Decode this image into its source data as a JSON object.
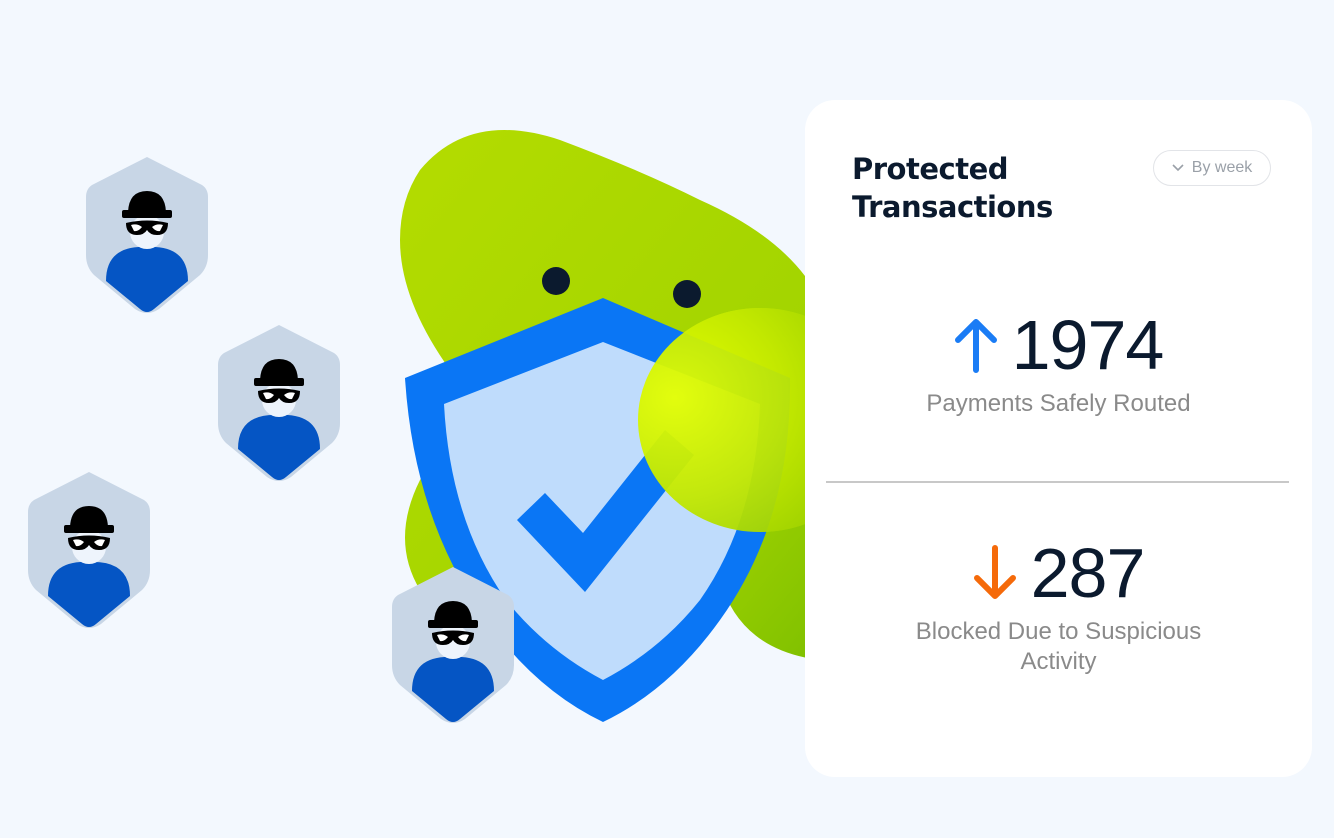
{
  "card": {
    "title_line1": "Protected",
    "title_line2": "Transactions",
    "filter": {
      "label": "By week",
      "icon": "chevron-down-icon"
    },
    "stats": [
      {
        "value": "1974",
        "label": "Payments Safely Routed",
        "trend": "up",
        "color": "#1a7cf5"
      },
      {
        "value": "287",
        "label_line1": "Blocked Due to Suspicious",
        "label_line2": "Activity",
        "trend": "down",
        "color": "#f56a0a"
      }
    ]
  },
  "colors": {
    "background": "#f3f8fe",
    "shield": "#0a76f5",
    "shield_inner": "#bfdcfc",
    "blob": "#a8d400",
    "thief_body": "#0555c4",
    "thief_shield": "#c8d6e6"
  }
}
